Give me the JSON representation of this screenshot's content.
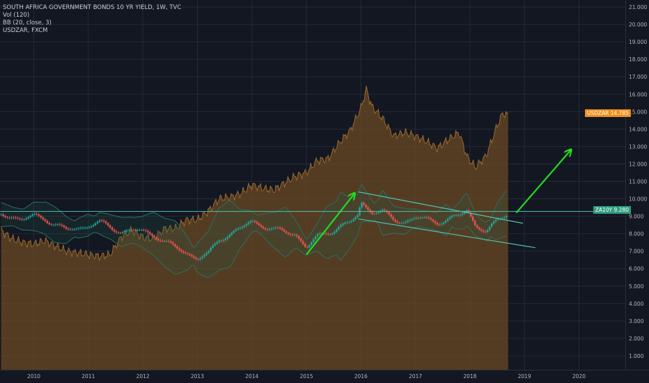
{
  "legend": {
    "title": "SOUTH AFRICA GOVERNMENT BONDS 10 YR YIELD, 1W, TVC",
    "line2": "Vol (120)",
    "line3": "BB (20, close, 3)",
    "line4": "USDZAR, FXCM"
  },
  "tags": {
    "usdzar_label": "USDZAR",
    "usdzar_value": "14.785",
    "za10y_label": "ZA10Y",
    "za10y_value": "9.280"
  },
  "colors": {
    "background": "#131722",
    "grid": "#242a3a",
    "usdzar_fill": "#6b4a24",
    "usdzar_line": "#9a6a2e",
    "candle_up": "#26a69a",
    "candle_down": "#ef5350",
    "bands": "#2f6f5c",
    "channel": "#4fc3b0",
    "arrow": "#22dd22",
    "axis_text": "#b2b5be"
  },
  "chart_data": {
    "type": "line",
    "title": "SOUTH AFRICA GOVERNMENT BONDS 10 YR YIELD, 1W, TVC",
    "ylim": [
      0.2,
      21.4
    ],
    "y_ticks": [
      "1.000",
      "2.000",
      "3.000",
      "4.000",
      "5.000",
      "6.000",
      "7.000",
      "8.000",
      "9.000",
      "10.000",
      "11.000",
      "12.000",
      "13.000",
      "14.000",
      "15.000",
      "16.000",
      "17.000",
      "18.000",
      "19.000",
      "20.000",
      "21.000"
    ],
    "x_ticks": [
      "2010",
      "2011",
      "2012",
      "2013",
      "2014",
      "2015",
      "2016",
      "2017",
      "2018",
      "2019",
      "2020"
    ],
    "xlim": [
      2009.38,
      2020.85
    ],
    "series": [
      {
        "name": "ZA10Y",
        "x": [
          2009.4,
          2009.6,
          2009.8,
          2010.0,
          2010.2,
          2010.4,
          2010.6,
          2010.8,
          2011.0,
          2011.2,
          2011.4,
          2011.6,
          2011.8,
          2012.0,
          2012.2,
          2012.4,
          2012.6,
          2012.8,
          2013.0,
          2013.2,
          2013.4,
          2013.6,
          2013.8,
          2014.0,
          2014.2,
          2014.4,
          2014.6,
          2014.8,
          2015.0,
          2015.2,
          2015.4,
          2015.6,
          2015.8,
          2015.95,
          2016.0,
          2016.2,
          2016.4,
          2016.6,
          2016.8,
          2017.0,
          2017.2,
          2017.4,
          2017.6,
          2017.8,
          2017.95,
          2018.1,
          2018.3,
          2018.5,
          2018.7
        ],
        "values": [
          9.1,
          9.0,
          8.8,
          9.0,
          8.9,
          8.5,
          8.2,
          8.3,
          8.5,
          8.6,
          8.4,
          8.1,
          8.2,
          8.1,
          8.0,
          7.5,
          7.2,
          6.9,
          6.6,
          6.8,
          7.7,
          8.0,
          8.3,
          8.7,
          8.5,
          8.2,
          8.1,
          8.0,
          7.2,
          7.8,
          8.1,
          8.4,
          8.6,
          9.1,
          9.8,
          9.3,
          9.2,
          8.8,
          8.7,
          8.9,
          8.8,
          8.7,
          8.8,
          9.0,
          9.4,
          8.5,
          8.1,
          8.7,
          9.28
        ]
      },
      {
        "name": "USDZAR",
        "x": [
          2009.4,
          2009.6,
          2009.8,
          2010.0,
          2010.2,
          2010.4,
          2010.6,
          2010.8,
          2011.0,
          2011.2,
          2011.4,
          2011.6,
          2011.8,
          2012.0,
          2012.2,
          2012.4,
          2012.6,
          2012.8,
          2013.0,
          2013.2,
          2013.4,
          2013.6,
          2013.8,
          2014.0,
          2014.2,
          2014.4,
          2014.6,
          2014.8,
          2015.0,
          2015.2,
          2015.4,
          2015.6,
          2015.8,
          2016.0,
          2016.1,
          2016.2,
          2016.4,
          2016.6,
          2016.8,
          2017.0,
          2017.2,
          2017.4,
          2017.6,
          2017.8,
          2017.95,
          2018.1,
          2018.3,
          2018.5,
          2018.6,
          2018.7
        ],
        "values": [
          8.2,
          7.7,
          7.5,
          7.4,
          7.6,
          7.3,
          7.0,
          6.9,
          6.8,
          6.7,
          6.8,
          7.8,
          8.2,
          7.8,
          7.7,
          8.3,
          8.3,
          8.8,
          8.8,
          9.3,
          10.0,
          10.1,
          10.3,
          10.8,
          10.6,
          10.5,
          10.9,
          11.3,
          11.5,
          12.2,
          12.3,
          13.2,
          13.9,
          15.2,
          16.3,
          15.3,
          14.6,
          13.6,
          13.8,
          13.6,
          13.3,
          12.9,
          13.4,
          13.8,
          12.4,
          11.8,
          12.5,
          14.2,
          14.9,
          14.79
        ]
      }
    ],
    "annotations": [
      {
        "type": "arrow",
        "from": [
          2015.0,
          6.8
        ],
        "to": [
          2015.88,
          10.3
        ]
      },
      {
        "type": "arrow",
        "from": [
          2018.85,
          9.2
        ],
        "to": [
          2019.85,
          12.8
        ]
      },
      {
        "type": "channel_line",
        "from": [
          2015.95,
          10.4
        ],
        "to": [
          2018.97,
          8.6
        ]
      },
      {
        "type": "channel_line",
        "from": [
          2015.95,
          8.85
        ],
        "to": [
          2019.2,
          7.2
        ]
      },
      {
        "type": "hline",
        "y": 9.28
      }
    ]
  }
}
